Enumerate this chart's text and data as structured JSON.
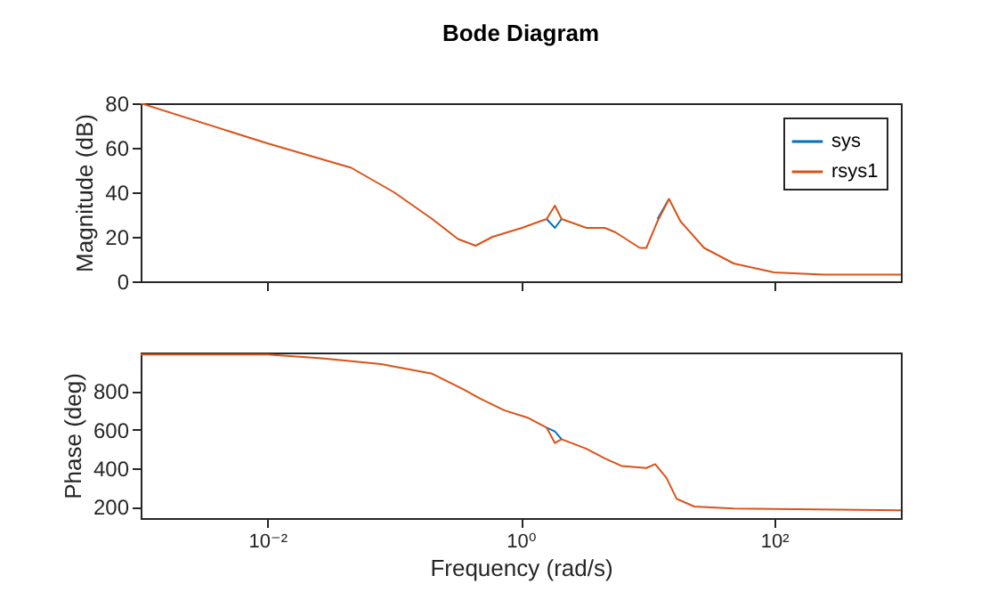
{
  "chart_data": [
    {
      "type": "line",
      "title": "Bode Diagram",
      "ylabel": "Magnitude (dB)",
      "x": [
        0.001,
        0.01,
        0.046,
        0.1,
        0.2,
        0.32,
        0.44,
        0.6,
        1.02,
        1.6,
        1.86,
        2.1,
        3.3,
        4.6,
        5.6,
        8.7,
        9.8,
        12,
        14.8,
        18.2,
        28,
        48,
        100,
        245,
        1000
      ],
      "series": [
        {
          "name": "sys",
          "color": "#0072bd",
          "values": [
            null,
            null,
            null,
            null,
            null,
            null,
            null,
            null,
            null,
            28,
            24,
            28,
            null,
            null,
            null,
            null,
            null,
            28,
            37,
            null,
            null,
            null,
            null,
            null,
            null
          ]
        },
        {
          "name": "rsys1",
          "color": "#d95319",
          "values": [
            80,
            62,
            51,
            40,
            28,
            19,
            16,
            20,
            24,
            28,
            34,
            28,
            24,
            24,
            22,
            15,
            15,
            27,
            37,
            27,
            15,
            8,
            4,
            3,
            3
          ]
        }
      ],
      "xlim": [
        0.001,
        1000
      ],
      "xticks": [
        {
          "value": 0.01,
          "label": null
        },
        {
          "value": 1,
          "label": null
        },
        {
          "value": 100,
          "label": null
        }
      ],
      "ylim": [
        0,
        80
      ],
      "yticks": [
        0,
        20,
        40,
        60,
        80
      ],
      "log": "x",
      "legend": "top right",
      "tick_labels": "y",
      "line_style": "solid"
    },
    {
      "type": "line",
      "xlabel": "Frequency (rad/s)",
      "ylabel": "Phase (deg)",
      "x": [
        0.001,
        0.01,
        0.027,
        0.079,
        0.2,
        0.35,
        0.48,
        0.74,
        1.15,
        1.6,
        1.86,
        2.1,
        3.3,
        4.6,
        6.3,
        9.8,
        11.5,
        14.1,
        17,
        23.4,
        48,
        1000
      ],
      "series": [
        {
          "color": "#0072bd",
          "values": [
            null,
            null,
            null,
            null,
            null,
            null,
            null,
            null,
            null,
            610,
            590,
            550,
            null,
            null,
            null,
            null,
            null,
            null,
            null,
            null,
            null,
            null
          ]
        },
        {
          "color": "#d95319",
          "values": [
            990,
            990,
            970,
            940,
            890,
            810,
            760,
            700,
            660,
            610,
            530,
            550,
            500,
            450,
            410,
            400,
            420,
            350,
            240,
            200,
            190,
            180
          ]
        }
      ],
      "xlim": [
        0.001,
        1000
      ],
      "xticks": [
        {
          "value": 0.01,
          "label": "10⁻²"
        },
        {
          "value": 1,
          "label": "10⁰"
        },
        {
          "value": 100,
          "label": "10²"
        }
      ],
      "ylim": [
        140,
        1000
      ],
      "yticks": [
        200,
        400,
        600,
        800
      ],
      "log": "x",
      "line_style": "solid"
    }
  ]
}
